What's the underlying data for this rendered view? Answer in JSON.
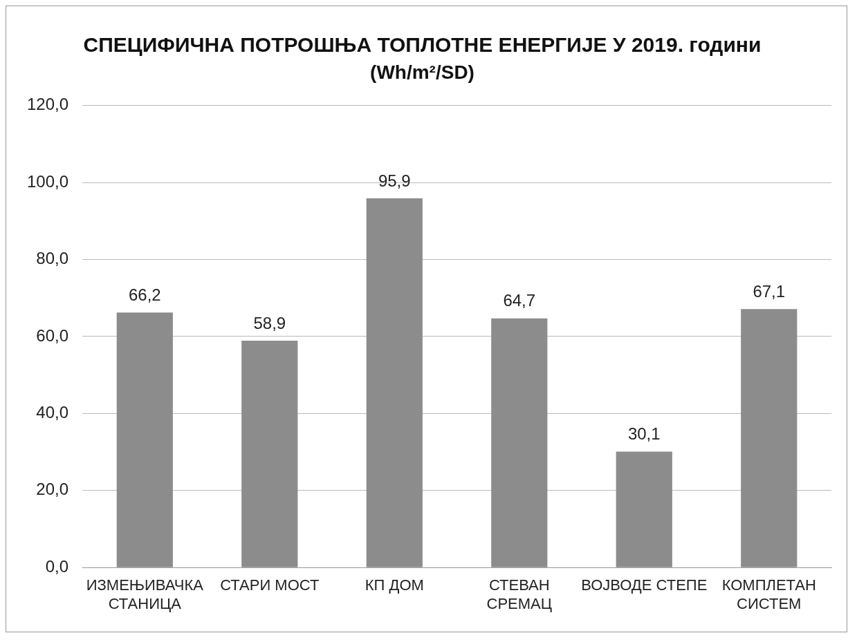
{
  "chart_data": {
    "type": "bar",
    "title": "СПЕЦИФИЧНА ПОТРОШЊА ТОПЛОТНЕ ЕНЕРГИЈЕ У 2019. години",
    "subtitle": "(Wh/m²/SD)",
    "categories": [
      "ИЗМЕЊИВАЧКА\nСТАНИЦА",
      "СТАРИ МОСТ",
      "КП ДОМ",
      "СТЕВАН\nСРЕМАЦ",
      "ВОЈВОДЕ СТЕПЕ",
      "КОМПЛЕТАН\nСИСТЕМ"
    ],
    "values": [
      66.2,
      58.9,
      95.9,
      64.7,
      30.1,
      67.1
    ],
    "value_labels": [
      "66,2",
      "58,9",
      "95,9",
      "64,7",
      "30,1",
      "67,1"
    ],
    "color": "#8c8c8c",
    "ylim": [
      0,
      120
    ],
    "yticks": [
      {
        "value": 0,
        "label": "0,0"
      },
      {
        "value": 20,
        "label": "20,0"
      },
      {
        "value": 40,
        "label": "40,0"
      },
      {
        "value": 60,
        "label": "60,0"
      },
      {
        "value": 80,
        "label": "80,0"
      },
      {
        "value": 100,
        "label": "100,0"
      },
      {
        "value": 120,
        "label": "120,0"
      }
    ],
    "grid": "y",
    "legend": false
  }
}
